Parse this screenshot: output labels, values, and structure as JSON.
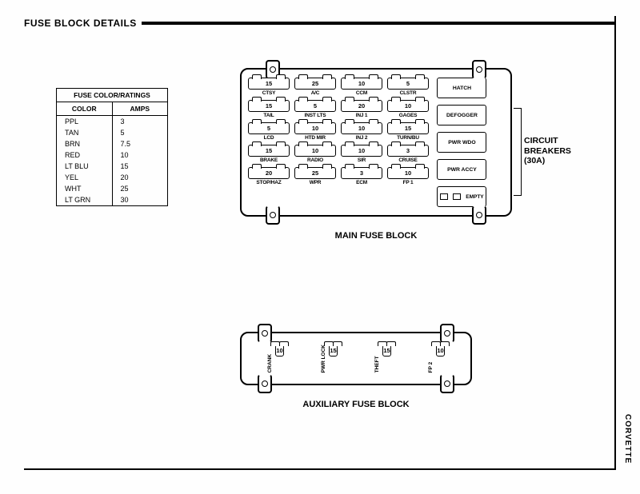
{
  "header": {
    "title": "FUSE BLOCK DETAILS"
  },
  "colorTable": {
    "title": "FUSE COLOR/RATINGS",
    "col1": "COLOR",
    "col2": "AMPS",
    "rows": [
      {
        "color": "PPL",
        "amps": "3"
      },
      {
        "color": "TAN",
        "amps": "5"
      },
      {
        "color": "BRN",
        "amps": "7.5"
      },
      {
        "color": "RED",
        "amps": "10"
      },
      {
        "color": "LT BLU",
        "amps": "15"
      },
      {
        "color": "YEL",
        "amps": "20"
      },
      {
        "color": "WHT",
        "amps": "25"
      },
      {
        "color": "LT GRN",
        "amps": "30"
      }
    ]
  },
  "mainBlock": {
    "caption": "MAIN FUSE BLOCK",
    "rows": [
      [
        {
          "v": "15",
          "l": "CTSY"
        },
        {
          "v": "25",
          "l": "A/C"
        },
        {
          "v": "10",
          "l": "CCM"
        },
        {
          "v": "5",
          "l": "CLSTR"
        }
      ],
      [
        {
          "v": "15",
          "l": "TAIL"
        },
        {
          "v": "5",
          "l": "INST LTS"
        },
        {
          "v": "20",
          "l": "INJ 1"
        },
        {
          "v": "10",
          "l": "GAGES"
        }
      ],
      [
        {
          "v": "5",
          "l": "LCD"
        },
        {
          "v": "10",
          "l": "HTD MIR"
        },
        {
          "v": "10",
          "l": "INJ 2"
        },
        {
          "v": "15",
          "l": "TURN/BU"
        }
      ],
      [
        {
          "v": "15",
          "l": "BRAKE"
        },
        {
          "v": "10",
          "l": "RADIO"
        },
        {
          "v": "10",
          "l": "SIR"
        },
        {
          "v": "3",
          "l": "CRUISE"
        }
      ],
      [
        {
          "v": "20",
          "l": "STOP/HAZ"
        },
        {
          "v": "25",
          "l": "WPR"
        },
        {
          "v": "3",
          "l": "ECM"
        },
        {
          "v": "10",
          "l": "FP 1"
        }
      ]
    ],
    "breakers": [
      {
        "l": "HATCH"
      },
      {
        "l": "DEFOGGER"
      },
      {
        "l": "PWR WDO"
      },
      {
        "l": "PWR ACCY"
      }
    ],
    "emptyLabel": "EMPTY",
    "cbLabel1": "CIRCUIT",
    "cbLabel2": "BREAKERS",
    "cbLabel3": "(30A)"
  },
  "auxBlock": {
    "caption": "AUXILIARY FUSE BLOCK",
    "fuses": [
      {
        "v": "10",
        "l": "CRANK"
      },
      {
        "v": "15",
        "l": "PWR LOCK"
      },
      {
        "v": "15",
        "l": "THEFT"
      },
      {
        "v": "10",
        "l": "FP 2"
      }
    ]
  },
  "sideLabel": "CORVETTE"
}
